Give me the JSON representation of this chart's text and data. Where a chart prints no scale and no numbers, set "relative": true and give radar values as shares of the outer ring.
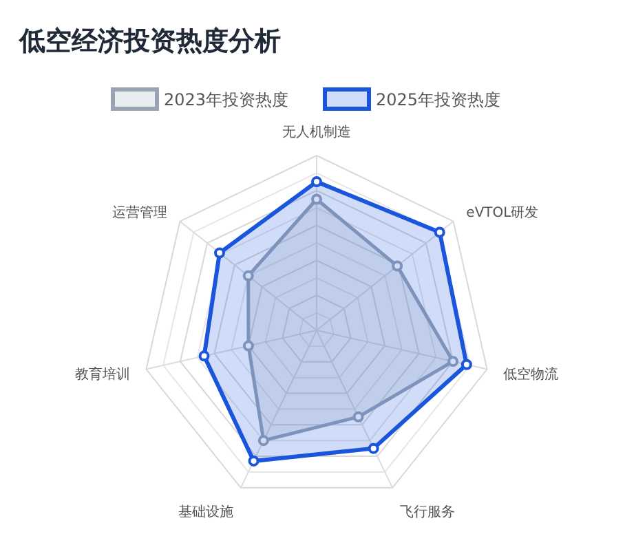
{
  "chart_data": {
    "type": "radar",
    "title": "低空经济投资热度分析",
    "relative": true,
    "grid": true,
    "legend": "top",
    "marker": "circle",
    "categories": [
      "无人机制造",
      "eVTOL研发",
      "低空物流",
      "飞行服务",
      "基础设施",
      "教育培训",
      "运营管理"
    ],
    "series": [
      {
        "name": "2023年投资热度",
        "color": "#98a3b3",
        "values": [
          0.75,
          0.59,
          0.8,
          0.55,
          0.7,
          0.4,
          0.5
        ]
      },
      {
        "name": "2025年投资热度",
        "color": "#1a56db",
        "values": [
          0.85,
          0.9,
          0.88,
          0.75,
          0.83,
          0.66,
          0.71
        ]
      }
    ]
  }
}
